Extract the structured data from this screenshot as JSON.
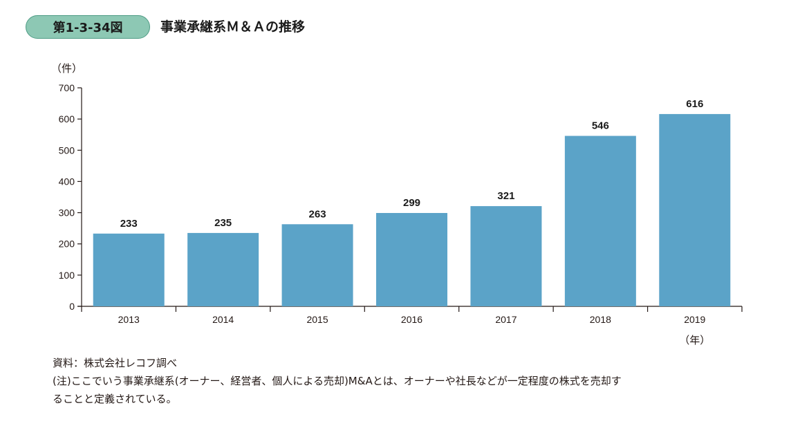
{
  "figure_badge": "第1-3-34図",
  "figure_title": "事業承継系Ｍ＆Ａの推移",
  "chart_data": {
    "type": "bar",
    "title": "事業承継系Ｍ＆Ａの推移",
    "ylabel": "（件）",
    "xlabel": "（年）",
    "categories": [
      "2013",
      "2014",
      "2015",
      "2016",
      "2017",
      "2018",
      "2019"
    ],
    "values": [
      233,
      235,
      263,
      299,
      321,
      546,
      616
    ],
    "ylim": [
      0,
      700
    ],
    "yticks": [
      0,
      100,
      200,
      300,
      400,
      500,
      600,
      700
    ],
    "grid": false,
    "bar_color": "#5ba3c8"
  },
  "notes": {
    "source": "資料：株式会社レコフ調べ",
    "note_line1": "(注)ここでいう事業承継系(オーナー、経営者、個人による売却)M&Aとは、オーナーや社長などが一定程度の株式を売却す",
    "note_line2": "ることと定義されている。"
  }
}
